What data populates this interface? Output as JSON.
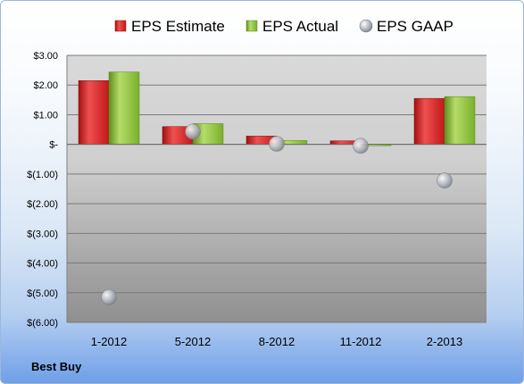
{
  "chart_data": {
    "type": "bar",
    "categories": [
      "1-2012",
      "5-2012",
      "8-2012",
      "11-2012",
      "2-2013"
    ],
    "series": [
      {
        "name": "EPS Estimate",
        "kind": "bar",
        "color": "#d42020",
        "values": [
          2.15,
          0.6,
          0.28,
          0.12,
          1.55
        ]
      },
      {
        "name": "EPS Actual",
        "kind": "bar",
        "color": "#8ec23a",
        "values": [
          2.44,
          0.7,
          0.13,
          -0.03,
          1.61
        ]
      },
      {
        "name": "EPS GAAP",
        "kind": "marker",
        "color": "#b8bcc4",
        "values": [
          -5.15,
          0.43,
          0.02,
          -0.05,
          -1.22
        ]
      }
    ],
    "ylim": [
      -6,
      3
    ],
    "yticks": [
      3,
      2,
      1,
      0,
      -1,
      -2,
      -3,
      -4,
      -5,
      -6
    ],
    "ytick_labels": [
      "$3.00",
      "$2.00",
      "$1.00",
      "$-",
      "$(1.00)",
      "$(2.00)",
      "$(3.00)",
      "$(4.00)",
      "$(5.00)",
      "$(6.00)"
    ],
    "grid": true,
    "legend_position": "top"
  },
  "footer": {
    "company": "Best Buy"
  }
}
